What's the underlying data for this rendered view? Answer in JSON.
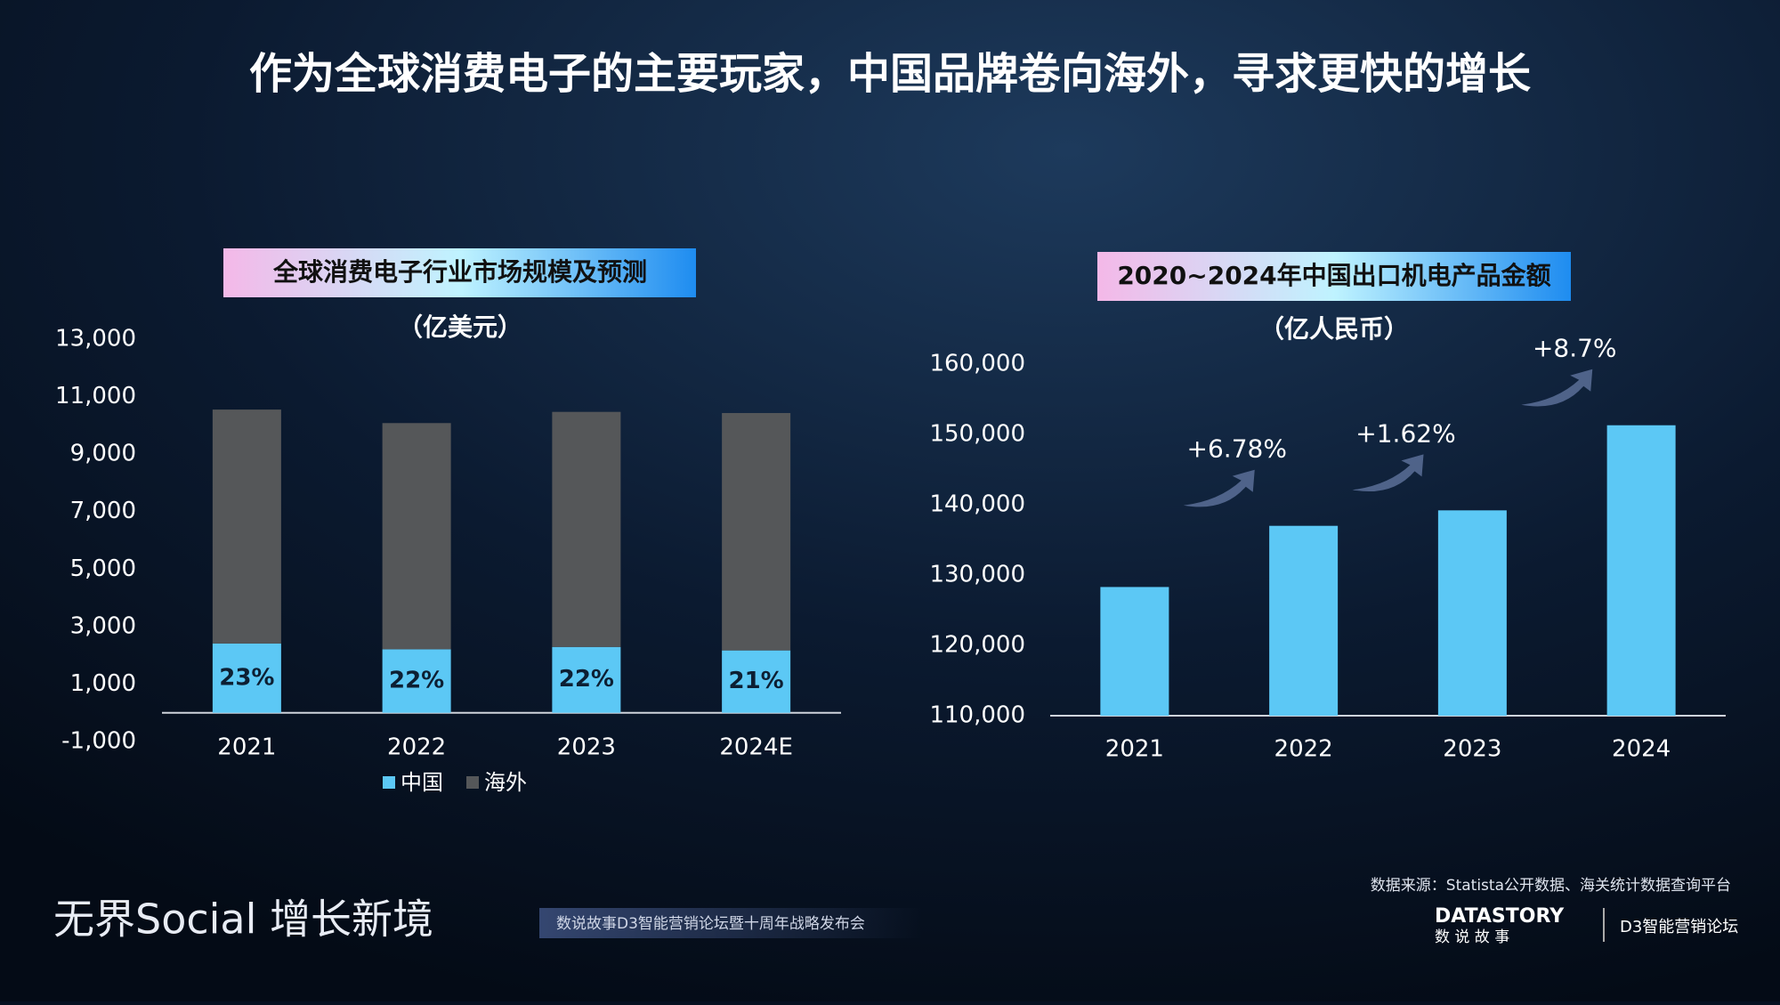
{
  "title": "作为全球消费电子的主要玩家，中国品牌卷向海外，寻求更快的增长",
  "chart_data": [
    {
      "type": "bar",
      "stacked": true,
      "title": "全球消费电子行业市场规模及预测",
      "subtitle": "（亿美元）",
      "categories": [
        "2021",
        "2022",
        "2023",
        "2024E"
      ],
      "series": [
        {
          "name": "中国",
          "color": "#5cc8f5",
          "values": [
            2410,
            2210,
            2290,
            2170
          ]
        },
        {
          "name": "海外",
          "color": "#555759",
          "values": [
            8140,
            7870,
            8180,
            8260
          ]
        }
      ],
      "share_labels": [
        "23%",
        "22%",
        "22%",
        "21%"
      ],
      "ylim": [
        -1000,
        13000
      ],
      "yticks": [
        {
          "value": -1000,
          "label": "-1,000"
        },
        {
          "value": 1000,
          "label": "1,000"
        },
        {
          "value": 3000,
          "label": "3,000"
        },
        {
          "value": 5000,
          "label": "5,000"
        },
        {
          "value": 7000,
          "label": "7,000"
        },
        {
          "value": 9000,
          "label": "9,000"
        },
        {
          "value": 11000,
          "label": "11,000"
        },
        {
          "value": 13000,
          "label": "13,000"
        }
      ],
      "legend": "bottom"
    },
    {
      "type": "bar",
      "title": "2020~2024年中国出口机电产品金额",
      "subtitle": "（亿人民币）",
      "categories": [
        "2021",
        "2022",
        "2023",
        "2024"
      ],
      "values": [
        128300,
        137000,
        139200,
        151300
      ],
      "color": "#5cc8f5",
      "annotations": [
        "+6.78%",
        "+1.62%",
        "+8.7%"
      ],
      "ylim": [
        110000,
        160000
      ],
      "yticks": [
        {
          "value": 110000,
          "label": "110,000"
        },
        {
          "value": 120000,
          "label": "120,000"
        },
        {
          "value": 130000,
          "label": "130,000"
        },
        {
          "value": 140000,
          "label": "140,000"
        },
        {
          "value": 150000,
          "label": "150,000"
        },
        {
          "value": 160000,
          "label": "160,000"
        }
      ]
    }
  ],
  "footer": {
    "brand": "无界Social 增长新境",
    "event": "数说故事D3智能营销论坛暨十周年战略发布会",
    "source": "数据来源：Statista公开数据、海关统计数据查询平台",
    "logo1": "DATASTORY",
    "logo1_sub": "数 说 故 事",
    "logo2": "D3智能营销论坛"
  }
}
